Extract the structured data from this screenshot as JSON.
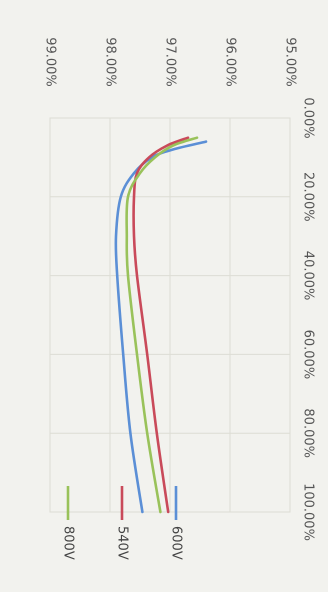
{
  "chart_data": {
    "type": "line",
    "title": "",
    "xlabel": "",
    "ylabel": "",
    "xlim": [
      0,
      100
    ],
    "ylim": [
      95,
      99
    ],
    "x_ticks": [
      "0.00%",
      "20.00%",
      "40.00%",
      "60.00%",
      "80.00%",
      "100.00%"
    ],
    "y_ticks": [
      "95.00%",
      "96.00%",
      "97.00%",
      "98.00%",
      "99.00%"
    ],
    "grid": true,
    "legend_position": "right",
    "series": [
      {
        "name": "600V",
        "color": "#5b8fd6",
        "points": [
          [
            6,
            96.4
          ],
          [
            8,
            96.95
          ],
          [
            10,
            97.3
          ],
          [
            14,
            97.6
          ],
          [
            20,
            97.82
          ],
          [
            30,
            97.9
          ],
          [
            40,
            97.88
          ],
          [
            60,
            97.78
          ],
          [
            80,
            97.66
          ],
          [
            100,
            97.46
          ]
        ]
      },
      {
        "name": "540V",
        "color": "#c94a5a",
        "points": [
          [
            5,
            96.7
          ],
          [
            7,
            97.05
          ],
          [
            10,
            97.35
          ],
          [
            14,
            97.55
          ],
          [
            20,
            97.6
          ],
          [
            30,
            97.6
          ],
          [
            40,
            97.55
          ],
          [
            60,
            97.38
          ],
          [
            80,
            97.22
          ],
          [
            100,
            97.03
          ]
        ]
      },
      {
        "name": "800V",
        "color": "#99c25a",
        "points": [
          [
            5,
            96.55
          ],
          [
            7,
            96.95
          ],
          [
            10,
            97.25
          ],
          [
            14,
            97.5
          ],
          [
            20,
            97.7
          ],
          [
            30,
            97.72
          ],
          [
            40,
            97.7
          ],
          [
            60,
            97.55
          ],
          [
            80,
            97.38
          ],
          [
            100,
            97.16
          ]
        ]
      }
    ]
  }
}
